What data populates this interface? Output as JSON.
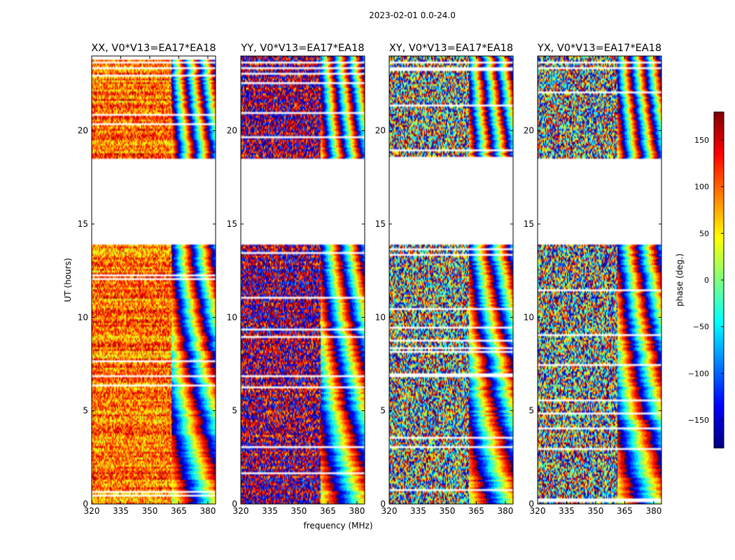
{
  "chart_data": {
    "type": "heatmap",
    "suptitle": "2023-02-01 0.0-24.0",
    "xlabel": "frequency (MHz)",
    "ylabel": "UT (hours)",
    "xlim": [
      320,
      384
    ],
    "ylim": [
      0,
      24
    ],
    "xticks": [
      320,
      335,
      350,
      365,
      380
    ],
    "yticks": [
      0,
      5,
      10,
      15,
      20
    ],
    "colorbar": {
      "label": "phase (deg.)",
      "range": [
        -180,
        180
      ],
      "ticks": [
        150,
        100,
        50,
        0,
        -50,
        -100,
        -150
      ],
      "colormap": "jet",
      "stops": [
        "#00007f",
        "#0000ff",
        "#007fff",
        "#00ffff",
        "#7fff7f",
        "#ffff00",
        "#ff7f00",
        "#ff0000",
        "#7f0000"
      ]
    },
    "no_data_ut_ranges": [
      [
        13.9,
        18.5
      ],
      [
        23.3,
        23.4
      ],
      [
        23.6,
        23.7
      ]
    ],
    "panels": [
      {
        "title": "XX, V0*V13=EA17*EA18",
        "polarization": "XX",
        "dominant_phase_deg": 95,
        "phase_scatter_deg": 55,
        "fringe_start_mhz": 361
      },
      {
        "title": "YY, V0*V13=EA17*EA18",
        "polarization": "YY",
        "dominant_phase_deg": 170,
        "phase_scatter_deg": 90,
        "fringe_start_mhz": 361
      },
      {
        "title": "XY, V0*V13=EA17*EA18",
        "polarization": "XY",
        "dominant_phase_deg": 0,
        "phase_scatter_deg": 180,
        "fringe_start_mhz": 361
      },
      {
        "title": "YX, V0*V13=EA17*EA18",
        "polarization": "YX",
        "dominant_phase_deg": 0,
        "phase_scatter_deg": 180,
        "fringe_start_mhz": 361
      }
    ]
  }
}
